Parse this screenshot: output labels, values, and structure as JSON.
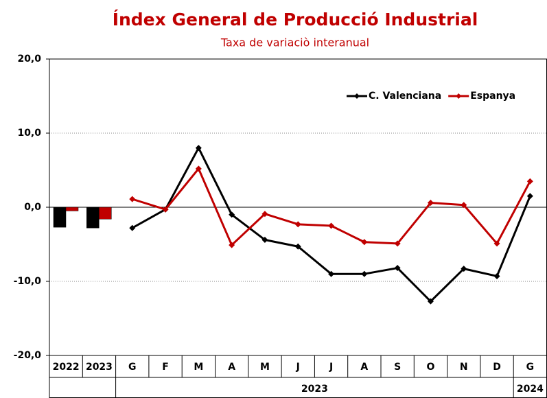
{
  "chart_data": {
    "type": "line",
    "title": "Índex General de Producció Industrial",
    "subtitle": "Taxa de variaciò interanual",
    "annual_categories": [
      "2022",
      "2023"
    ],
    "categories": [
      "G",
      "F",
      "M",
      "A",
      "M",
      "J",
      "J",
      "A",
      "S",
      "O",
      "N",
      "D",
      "G"
    ],
    "x_groups": [
      {
        "label": "2023",
        "count": 12
      },
      {
        "label": "2024",
        "count": 1
      }
    ],
    "series": [
      {
        "name": "C. Valenciana",
        "color": "#000000",
        "annual_values": [
          -2.7,
          -2.8
        ],
        "values": [
          -2.8,
          -0.3,
          8.0,
          -1.0,
          -4.4,
          -5.3,
          -9.0,
          -9.0,
          -8.2,
          -12.7,
          -8.3,
          -9.3,
          1.5
        ]
      },
      {
        "name": "Espanya",
        "color": "#c00000",
        "annual_values": [
          -0.5,
          -1.6
        ],
        "values": [
          1.1,
          -0.3,
          5.2,
          -5.1,
          -0.9,
          -2.3,
          -2.5,
          -4.7,
          -4.9,
          0.6,
          0.3,
          -4.9,
          3.5
        ]
      }
    ],
    "ylim": [
      -20,
      20
    ],
    "yticks": [
      {
        "value": -20,
        "label": "-20,0"
      },
      {
        "value": -10,
        "label": "-10,0"
      },
      {
        "value": 0,
        "label": "0,0"
      },
      {
        "value": 10,
        "label": "10,0"
      },
      {
        "value": 20,
        "label": "20,0"
      }
    ],
    "grid": true,
    "legend": "upper right"
  }
}
